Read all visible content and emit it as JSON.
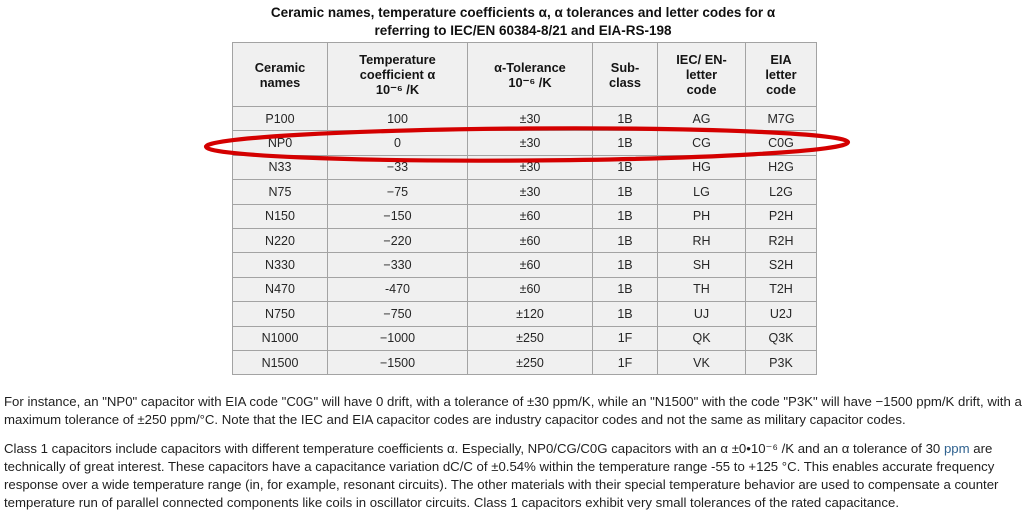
{
  "title": {
    "line1": "Ceramic names, temperature coefficients α, α tolerances and letter codes for α",
    "line2": "referring to IEC/EN 60384-8/21 and EIA-RS-198"
  },
  "table": {
    "headers": [
      {
        "id": "ceramic-names",
        "label": "Ceramic\nnames"
      },
      {
        "id": "temp-coefficient",
        "label": "Temperature\ncoefficient α\n10⁻⁶ /K"
      },
      {
        "id": "alpha-tolerance",
        "label": "α-Tolerance\n10⁻⁶ /K"
      },
      {
        "id": "sub-class",
        "label": "Sub-\nclass"
      },
      {
        "id": "iec-en-code",
        "label": "IEC/ EN-\nletter\ncode"
      },
      {
        "id": "eia-code",
        "label": "EIA\nletter\ncode"
      }
    ],
    "rows": [
      [
        "P100",
        "100",
        "±30",
        "1B",
        "AG",
        "M7G"
      ],
      [
        "NP0",
        "0",
        "±30",
        "1B",
        "CG",
        "C0G"
      ],
      [
        "N33",
        "−33",
        "±30",
        "1B",
        "HG",
        "H2G"
      ],
      [
        "N75",
        "−75",
        "±30",
        "1B",
        "LG",
        "L2G"
      ],
      [
        "N150",
        "−150",
        "±60",
        "1B",
        "PH",
        "P2H"
      ],
      [
        "N220",
        "−220",
        "±60",
        "1B",
        "RH",
        "R2H"
      ],
      [
        "N330",
        "−330",
        "±60",
        "1B",
        "SH",
        "S2H"
      ],
      [
        "N470",
        "-470",
        "±60",
        "1B",
        "TH",
        "T2H"
      ],
      [
        "N750",
        "−750",
        "±120",
        "1B",
        "UJ",
        "U2J"
      ],
      [
        "N1000",
        "−1000",
        "±250",
        "1F",
        "QK",
        "Q3K"
      ],
      [
        "N1500",
        "−1500",
        "±250",
        "1F",
        "VK",
        "P3K"
      ]
    ]
  },
  "annotation": {
    "description": "red ellipse circling the NP0 row",
    "color": "#d40000"
  },
  "paragraphs": [
    {
      "segments": [
        {
          "text": "For instance, an \"NP0\" capacitor with EIA code \"C0G\" will have 0 drift, with a tolerance of ±30 ppm/K, while an \"N1500\" with the code \"P3K\" will have −1500 ppm/K drift, with a maximum tolerance of ±250 ppm/°C. Note that the IEC and EIA capacitor codes are industry capacitor codes and not the same as military capacitor codes."
        }
      ]
    },
    {
      "segments": [
        {
          "text": "Class 1 capacitors include capacitors with different temperature coefficients α. Especially, NP0/CG/C0G capacitors with an α ±0•10⁻⁶ /K and an α tolerance of 30 "
        },
        {
          "text": "ppm",
          "style": "link"
        },
        {
          "text": " are technically of great interest. These capacitors have a capacitance variation dC/C of ±0.54% within the temperature range -55 to +125 °C. This enables accurate frequency response over a wide temperature range (in, for example, resonant circuits). The other materials with their special temperature behavior are used to compensate a counter temperature run of parallel connected components like coils in oscillator circuits. Class 1 capacitors exhibit very small tolerances of the rated capacitance."
        }
      ]
    }
  ]
}
